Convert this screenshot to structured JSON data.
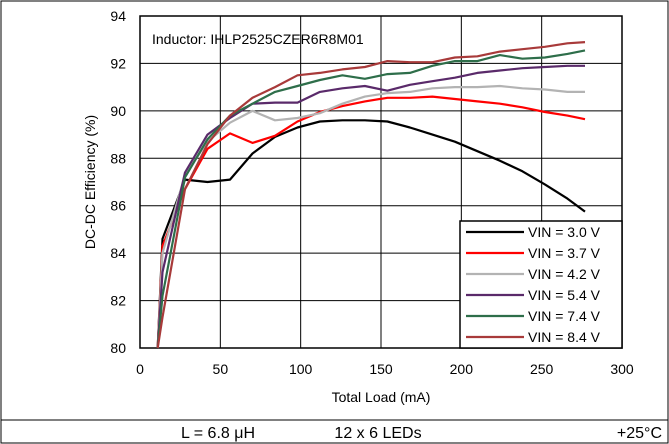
{
  "chart_data": {
    "type": "line",
    "annotation": "Inductor: IHLP2525CZER6R8M01",
    "xlabel": "Total Load (mA)",
    "ylabel": "DC-DC Efficiency (%)",
    "xlim": [
      0,
      300
    ],
    "ylim": [
      80,
      94
    ],
    "xticks": [
      0,
      50,
      100,
      150,
      200,
      250,
      300
    ],
    "yticks": [
      80,
      82,
      84,
      86,
      88,
      90,
      92,
      94
    ],
    "grid": true,
    "legend_position": "bottom-right",
    "footer": {
      "left": "L = 6.8 μH",
      "center": "12 x 6 LEDs",
      "right": "+25°C"
    },
    "x": [
      11,
      14,
      28,
      42,
      56,
      70,
      84,
      98,
      112,
      126,
      140,
      154,
      168,
      182,
      196,
      210,
      224,
      238,
      252,
      266,
      277
    ],
    "series": [
      {
        "name": "VIN = 3.0 V",
        "color": "#000000",
        "values": [
          80.0,
          84.6,
          87.1,
          87.0,
          87.1,
          88.2,
          88.9,
          89.3,
          89.55,
          89.6,
          89.6,
          89.55,
          89.3,
          89.0,
          88.7,
          88.3,
          87.9,
          87.45,
          86.9,
          86.3,
          85.75
        ]
      },
      {
        "name": "VIN = 3.7 V",
        "color": "#ff0000",
        "values": [
          80.0,
          84.3,
          86.7,
          88.4,
          89.05,
          88.65,
          88.95,
          89.55,
          89.95,
          90.2,
          90.4,
          90.55,
          90.55,
          90.6,
          90.5,
          90.4,
          90.3,
          90.15,
          89.95,
          89.8,
          89.65
        ]
      },
      {
        "name": "VIN = 4.2 V",
        "color": "#b3b3b3",
        "values": [
          80.0,
          84.0,
          87.3,
          88.7,
          89.5,
          90.0,
          89.6,
          89.7,
          89.9,
          90.3,
          90.6,
          90.75,
          90.8,
          90.95,
          91.0,
          91.0,
          91.05,
          90.95,
          90.9,
          90.8,
          90.8
        ]
      },
      {
        "name": "VIN = 5.4 V",
        "color": "#5a2a6a",
        "values": [
          80.0,
          83.2,
          87.4,
          89.0,
          89.7,
          90.3,
          90.35,
          90.35,
          90.8,
          90.95,
          91.05,
          90.85,
          91.1,
          91.25,
          91.4,
          91.6,
          91.7,
          91.8,
          91.85,
          91.9,
          91.9
        ]
      },
      {
        "name": "VIN = 7.4 V",
        "color": "#2e6e4a",
        "values": [
          80.0,
          82.2,
          87.2,
          88.8,
          89.8,
          90.3,
          90.8,
          91.05,
          91.3,
          91.5,
          91.35,
          91.55,
          91.6,
          91.9,
          92.1,
          92.1,
          92.35,
          92.2,
          92.25,
          92.4,
          92.55
        ]
      },
      {
        "name": "VIN = 8.4 V",
        "color": "#a83a3a",
        "values": [
          80.0,
          81.3,
          86.7,
          88.6,
          89.8,
          90.55,
          91.0,
          91.5,
          91.6,
          91.75,
          91.85,
          92.1,
          92.05,
          92.05,
          92.25,
          92.3,
          92.5,
          92.6,
          92.7,
          92.85,
          92.9
        ]
      }
    ]
  }
}
